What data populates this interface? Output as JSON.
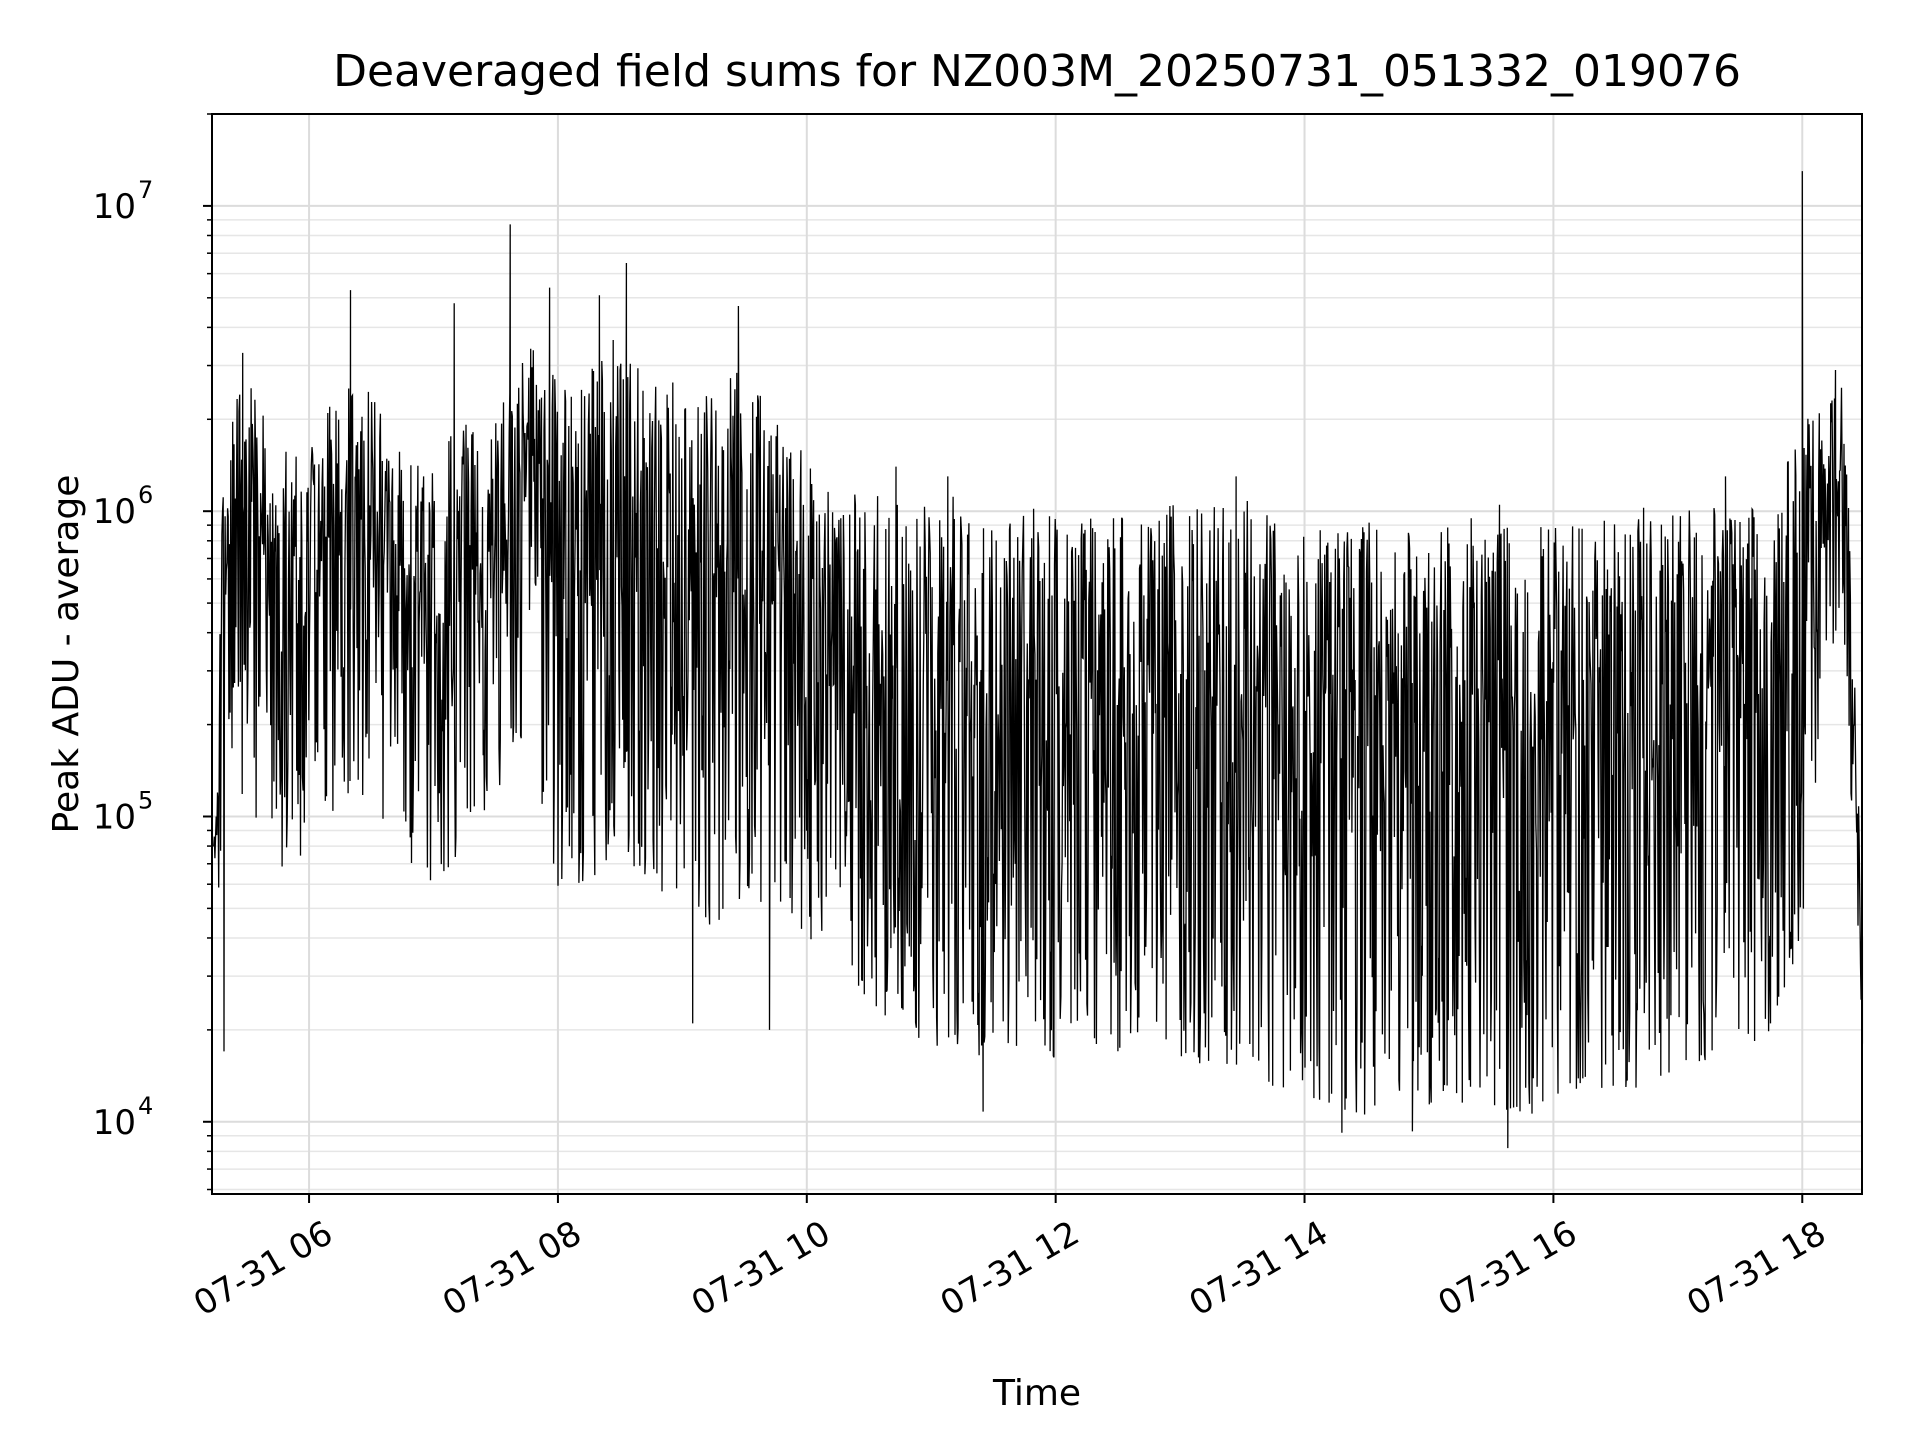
{
  "chart_data": {
    "type": "line",
    "title": "Deaveraged field sums for NZ003M_20250731_051332_019076",
    "xlabel": "Time",
    "ylabel": "Peak ADU - average",
    "yscale": "log",
    "ylim": [
      5800,
      20000000
    ],
    "xlim_hours": [
      5.22,
      18.48
    ],
    "grid": true,
    "line_color": "#000000",
    "x_ticks": [
      {
        "hour": 6,
        "label": "07-31 06"
      },
      {
        "hour": 8,
        "label": "07-31 08"
      },
      {
        "hour": 10,
        "label": "07-31 10"
      },
      {
        "hour": 12,
        "label": "07-31 12"
      },
      {
        "hour": 14,
        "label": "07-31 14"
      },
      {
        "hour": 16,
        "label": "07-31 16"
      },
      {
        "hour": 18,
        "label": "07-31 18"
      }
    ],
    "y_ticks": [
      {
        "value": 10000,
        "base": "10",
        "exp": "4"
      },
      {
        "value": 100000,
        "base": "10",
        "exp": "5"
      },
      {
        "value": 1000000,
        "base": "10",
        "exp": "6"
      },
      {
        "value": 10000000,
        "base": "10",
        "exp": "7"
      }
    ],
    "series": [
      {
        "x": [
          "05:14",
          "05:20",
          "05:30",
          "05:45",
          "06:00",
          "06:15",
          "06:30",
          "06:45",
          "07:00",
          "07:15",
          "07:30",
          "07:45",
          "08:00",
          "08:15",
          "08:30",
          "08:45",
          "09:00",
          "09:15",
          "09:30",
          "09:45",
          "10:00",
          "10:15",
          "10:30",
          "10:45",
          "11:00",
          "11:15",
          "11:30",
          "11:45",
          "12:00",
          "12:15",
          "12:30",
          "12:45",
          "13:00",
          "13:15",
          "13:30",
          "13:45",
          "14:00",
          "14:15",
          "14:30",
          "14:45",
          "15:00",
          "15:15",
          "15:30",
          "15:45",
          "16:00",
          "16:15",
          "16:30",
          "16:45",
          "17:00",
          "17:15",
          "17:30",
          "17:45",
          "18:00",
          "18:10",
          "18:20",
          "18:29"
        ],
        "upper": [
          80000,
          2800000,
          3000000,
          1500000,
          1800000,
          2500000,
          2600000,
          1500000,
          1500000,
          2000000,
          2000000,
          3500000,
          3000000,
          2800000,
          4500000,
          3000000,
          2500000,
          2500000,
          3000000,
          2000000,
          1500000,
          1200000,
          1100000,
          1200000,
          1100000,
          1150000,
          1000000,
          1050000,
          1000000,
          950000,
          950000,
          1000000,
          1100000,
          1050000,
          1150000,
          950000,
          850000,
          900000,
          950000,
          900000,
          900000,
          950000,
          950000,
          900000,
          900000,
          950000,
          950000,
          1050000,
          1100000,
          1050000,
          1000000,
          1100000,
          1900000,
          2400000,
          2800000,
          60000
        ],
        "lower": [
          17000,
          140000,
          110000,
          60000,
          80000,
          110000,
          120000,
          70000,
          60000,
          75000,
          110000,
          200000,
          55000,
          60000,
          80000,
          55000,
          45000,
          40000,
          45000,
          50000,
          40000,
          30000,
          25000,
          20000,
          18000,
          15000,
          16000,
          17000,
          16000,
          16000,
          17000,
          18000,
          16000,
          15000,
          14000,
          13000,
          12000,
          11000,
          10500,
          11000,
          11000,
          11500,
          11000,
          10000,
          12000,
          13000,
          12500,
          13000,
          15000,
          16000,
          17000,
          20000,
          40000,
          250000,
          350000,
          18000
        ]
      }
    ],
    "peaks": [
      {
        "x": "05:28",
        "value": 3300000
      },
      {
        "x": "06:20",
        "value": 5300000
      },
      {
        "x": "07:10",
        "value": 4800000
      },
      {
        "x": "07:37",
        "value": 8700000
      },
      {
        "x": "07:56",
        "value": 5400000
      },
      {
        "x": "08:20",
        "value": 5100000
      },
      {
        "x": "08:33",
        "value": 6500000
      },
      {
        "x": "09:27",
        "value": 4700000
      },
      {
        "x": "10:43",
        "value": 1400000
      },
      {
        "x": "11:08",
        "value": 1300000
      },
      {
        "x": "13:27",
        "value": 1300000
      },
      {
        "x": "15:34",
        "value": 1050000
      },
      {
        "x": "17:23",
        "value": 1300000
      },
      {
        "x": "18:00",
        "value": 13000000
      },
      {
        "x": "18:16",
        "value": 2900000
      }
    ],
    "dips": [
      {
        "x": "05:19",
        "value": 17000
      },
      {
        "x": "09:05",
        "value": 21000
      },
      {
        "x": "09:42",
        "value": 20000
      },
      {
        "x": "11:25",
        "value": 10800
      },
      {
        "x": "14:18",
        "value": 9200
      },
      {
        "x": "14:52",
        "value": 9300
      },
      {
        "x": "15:38",
        "value": 8200
      },
      {
        "x": "18:29",
        "value": 18000
      }
    ]
  }
}
